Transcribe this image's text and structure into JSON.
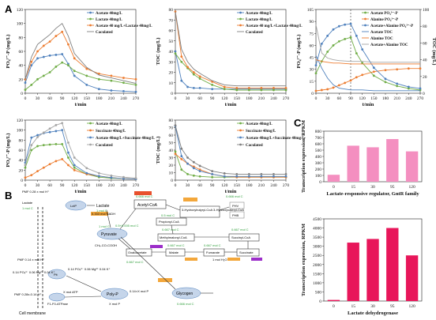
{
  "panels": {
    "a": "A",
    "b": "B",
    "c": "C"
  },
  "chart_data": [
    {
      "type": "line",
      "id": "a1",
      "xlabel": "t/min",
      "ylabel": "PO₄³⁻-P (mg/L)",
      "xticks": [
        0,
        30,
        60,
        90,
        120,
        150,
        180,
        210,
        240,
        270
      ],
      "yticks": [
        0,
        20,
        40,
        60,
        80,
        100,
        120
      ],
      "xlim": [
        0,
        270
      ],
      "ylim": [
        0,
        120
      ],
      "legend": "top-right",
      "series": [
        {
          "name": "Acetate 40mg/L",
          "color": "#4f81bd",
          "marker": "circle",
          "x": [
            0,
            15,
            30,
            45,
            60,
            75,
            90,
            105,
            120,
            150,
            180,
            210,
            240,
            270
          ],
          "y": [
            15,
            40,
            50,
            52,
            54,
            55,
            56,
            42,
            25,
            12,
            6,
            4,
            3,
            2
          ]
        },
        {
          "name": "Lactate 40mg/L",
          "color": "#70ad47",
          "marker": "circle",
          "x": [
            0,
            15,
            30,
            45,
            60,
            75,
            90,
            105,
            120,
            150,
            180,
            210,
            240,
            270
          ],
          "y": [
            5,
            12,
            20,
            25,
            30,
            38,
            44,
            40,
            32,
            25,
            20,
            18,
            15,
            12
          ]
        },
        {
          "name": "Acetate 40 mg/L+Lactate 40mg/L",
          "color": "#ed7d31",
          "marker": "circle",
          "x": [
            0,
            15,
            30,
            45,
            60,
            75,
            90,
            105,
            120,
            150,
            180,
            210,
            240,
            270
          ],
          "y": [
            20,
            45,
            60,
            68,
            74,
            82,
            88,
            70,
            50,
            35,
            28,
            25,
            22,
            20
          ]
        },
        {
          "name": "Caculated",
          "color": "#7f7f7f",
          "marker": "none",
          "x": [
            0,
            15,
            30,
            45,
            60,
            75,
            90,
            105,
            120,
            150,
            180,
            210,
            240,
            270
          ],
          "y": [
            20,
            52,
            70,
            77,
            84,
            93,
            100,
            82,
            57,
            37,
            26,
            22,
            18,
            14
          ]
        }
      ]
    },
    {
      "type": "line",
      "id": "a2",
      "xlabel": "t/min",
      "ylabel": "TOC (mg/L)",
      "xticks": [
        0,
        30,
        60,
        90,
        120,
        150,
        180,
        210,
        240,
        270
      ],
      "yticks": [
        0,
        10,
        20,
        30,
        40,
        50,
        60,
        70,
        80
      ],
      "xlim": [
        0,
        270
      ],
      "ylim": [
        0,
        80
      ],
      "legend": "top-right",
      "series": [
        {
          "name": "Acetate 40mg/L",
          "color": "#4f81bd",
          "marker": "circle",
          "x": [
            0,
            15,
            30,
            45,
            60,
            90,
            120,
            150,
            180,
            210,
            240,
            270
          ],
          "y": [
            40,
            12,
            6,
            5,
            5,
            4,
            4,
            4,
            4,
            4,
            4,
            4
          ]
        },
        {
          "name": "Lactate 40mg/L",
          "color": "#70ad47",
          "marker": "circle",
          "x": [
            0,
            15,
            30,
            45,
            60,
            90,
            120,
            150,
            180,
            210,
            240,
            270
          ],
          "y": [
            38,
            30,
            24,
            18,
            14,
            8,
            4,
            3,
            3,
            3,
            3,
            3
          ]
        },
        {
          "name": "Acetate 40 mg/L+Lactate 40mg/L",
          "color": "#ed7d31",
          "marker": "circle",
          "x": [
            0,
            15,
            30,
            45,
            60,
            90,
            120,
            150,
            180,
            210,
            240,
            270
          ],
          "y": [
            78,
            35,
            25,
            20,
            16,
            11,
            6,
            5,
            5,
            5,
            5,
            5
          ]
        },
        {
          "name": "Caculated",
          "color": "#7f7f7f",
          "marker": "none",
          "x": [
            0,
            15,
            30,
            45,
            60,
            90,
            120,
            150,
            180,
            210,
            240,
            270
          ],
          "y": [
            78,
            42,
            30,
            23,
            19,
            12,
            8,
            7,
            7,
            7,
            7,
            7
          ]
        }
      ]
    },
    {
      "type": "line",
      "id": "a3",
      "xlabel": "t/min",
      "ylabel": "PO₄³⁻-P (mg/L)",
      "ylabel2": "TOC (mg/L)",
      "xticks": [
        0,
        30,
        60,
        90,
        120,
        150,
        180,
        210,
        240,
        270
      ],
      "yticks": [
        0,
        15,
        30,
        45,
        60,
        75,
        90,
        105
      ],
      "yticks2": [
        0,
        20,
        40,
        60,
        80,
        100
      ],
      "xlim": [
        0,
        270
      ],
      "ylim": [
        0,
        105
      ],
      "ylim2": [
        0,
        100
      ],
      "vline_x": 90,
      "legend": "top-right",
      "series": [
        {
          "name": "Acetate PO₄³⁻-P",
          "color": "#70ad47",
          "marker": "circle",
          "axis": "left",
          "x": [
            0,
            15,
            30,
            45,
            60,
            75,
            90,
            105,
            120,
            150,
            180,
            210,
            240,
            270
          ],
          "y": [
            25,
            40,
            52,
            60,
            65,
            68,
            70,
            50,
            38,
            22,
            14,
            9,
            6,
            4
          ]
        },
        {
          "name": "Alanine PO₄³⁻-P",
          "color": "#ed7d31",
          "marker": "circle",
          "axis": "left",
          "x": [
            0,
            15,
            30,
            45,
            60,
            75,
            90,
            105,
            120,
            150,
            180,
            210,
            240,
            270
          ],
          "y": [
            3,
            4,
            5,
            7,
            10,
            13,
            16,
            20,
            23,
            27,
            29,
            30,
            31,
            31
          ]
        },
        {
          "name": "Acetate+Alanine PO₄³⁻-P",
          "color": "#4f81bd",
          "marker": "circle",
          "axis": "left",
          "x": [
            0,
            15,
            30,
            45,
            60,
            75,
            90,
            105,
            120,
            150,
            180,
            210,
            240,
            270
          ],
          "y": [
            35,
            62,
            72,
            80,
            84,
            86,
            87,
            72,
            55,
            32,
            18,
            12,
            8,
            6
          ]
        },
        {
          "name": "Acetate TOC",
          "color": "#4f81bd",
          "marker": "none",
          "axis": "right",
          "x": [
            0,
            15,
            30,
            45,
            60,
            90,
            120,
            150,
            180,
            210,
            240,
            270
          ],
          "y": [
            45,
            30,
            18,
            10,
            6,
            4,
            4,
            3,
            3,
            3,
            3,
            3
          ]
        },
        {
          "name": "Alanine TOC",
          "color": "#ed7d31",
          "marker": "none",
          "axis": "right",
          "x": [
            0,
            15,
            30,
            45,
            60,
            90,
            120,
            150,
            180,
            210,
            240,
            270
          ],
          "y": [
            40,
            38,
            37,
            36,
            36,
            35,
            35,
            35,
            35,
            35,
            35,
            35
          ]
        },
        {
          "name": "Acetate+Alanine TOC",
          "color": "#a5a5a5",
          "marker": "none",
          "axis": "right",
          "x": [
            0,
            15,
            30,
            45,
            60,
            90,
            120,
            150,
            180,
            210,
            240,
            270
          ],
          "y": [
            82,
            48,
            42,
            40,
            39,
            38,
            38,
            37,
            37,
            37,
            37,
            37
          ]
        }
      ]
    },
    {
      "type": "line",
      "id": "a4",
      "xlabel": "t/min",
      "ylabel": "PO₄³⁻-P (mg/L)",
      "xticks": [
        0,
        30,
        60,
        90,
        120,
        150,
        180,
        210,
        240,
        270
      ],
      "yticks": [
        0,
        20,
        40,
        60,
        80,
        100,
        120
      ],
      "xlim": [
        0,
        270
      ],
      "ylim": [
        0,
        120
      ],
      "legend": "top-right",
      "series": [
        {
          "name": "Acetate 40mg/L",
          "color": "#70ad47",
          "marker": "circle",
          "x": [
            0,
            15,
            30,
            45,
            60,
            75,
            90,
            105,
            120,
            150,
            180,
            210,
            240,
            270
          ],
          "y": [
            25,
            60,
            68,
            70,
            71,
            72,
            72,
            45,
            25,
            12,
            6,
            4,
            3,
            2
          ]
        },
        {
          "name": "Succinate 40mg/L",
          "color": "#ed7d31",
          "marker": "circle",
          "x": [
            0,
            15,
            30,
            45,
            60,
            75,
            90,
            105,
            120,
            150,
            180,
            210,
            240,
            270
          ],
          "y": [
            5,
            10,
            18,
            25,
            32,
            38,
            42,
            30,
            20,
            12,
            8,
            5,
            3,
            2
          ]
        },
        {
          "name": "Acetate 40mg/L+Succinate 40mg/L",
          "color": "#4f81bd",
          "marker": "circle",
          "x": [
            0,
            15,
            30,
            45,
            60,
            75,
            90,
            105,
            120,
            150,
            180,
            210,
            240,
            270
          ],
          "y": [
            35,
            85,
            90,
            94,
            96,
            98,
            100,
            55,
            30,
            14,
            8,
            5,
            3,
            2
          ]
        },
        {
          "name": "Caculated",
          "color": "#a5a5a5",
          "marker": "circle",
          "x": [
            0,
            15,
            30,
            45,
            60,
            75,
            90,
            105,
            120,
            150,
            180,
            210,
            240,
            270
          ],
          "y": [
            30,
            70,
            86,
            95,
            103,
            110,
            114,
            75,
            45,
            24,
            14,
            9,
            6,
            4
          ]
        }
      ]
    },
    {
      "type": "line",
      "id": "a5",
      "xlabel": "t/min",
      "ylabel": "TOC (mg/L)",
      "xticks": [
        0,
        30,
        60,
        90,
        120,
        150,
        180,
        210,
        240,
        270
      ],
      "yticks": [
        0,
        10,
        20,
        30,
        40,
        50,
        60,
        70,
        80
      ],
      "xlim": [
        0,
        270
      ],
      "ylim": [
        0,
        80
      ],
      "legend": "top-right",
      "series": [
        {
          "name": "Acetate 40mg/L",
          "color": "#70ad47",
          "marker": "circle",
          "x": [
            0,
            15,
            30,
            45,
            60,
            90,
            120,
            150,
            180,
            210,
            240,
            270
          ],
          "y": [
            38,
            14,
            8,
            6,
            5,
            4,
            4,
            4,
            4,
            4,
            4,
            4
          ]
        },
        {
          "name": "Succinate 40mg/L",
          "color": "#ed7d31",
          "marker": "circle",
          "x": [
            0,
            15,
            30,
            45,
            60,
            90,
            120,
            150,
            180,
            210,
            240,
            270
          ],
          "y": [
            35,
            28,
            22,
            18,
            14,
            8,
            5,
            4,
            4,
            4,
            4,
            4
          ]
        },
        {
          "name": "Acetate 40mg/L+Succinate 40mg/L",
          "color": "#4f81bd",
          "marker": "circle",
          "x": [
            0,
            15,
            30,
            45,
            60,
            90,
            120,
            150,
            180,
            210,
            240,
            270
          ],
          "y": [
            72,
            32,
            22,
            16,
            12,
            8,
            5,
            5,
            5,
            5,
            5,
            5
          ]
        },
        {
          "name": "Caculated",
          "color": "#7f7f7f",
          "marker": "circle",
          "x": [
            0,
            15,
            30,
            45,
            60,
            90,
            120,
            150,
            180,
            210,
            240,
            270
          ],
          "y": [
            73,
            42,
            30,
            24,
            19,
            12,
            9,
            8,
            8,
            8,
            8,
            8
          ]
        }
      ]
    },
    {
      "type": "bar",
      "id": "c1",
      "xlabel": "Lactate-responsive regulator, GntR family",
      "ylabel": "Transcription expression, RPKM",
      "categories": [
        "0",
        "15",
        "30",
        "95",
        "120"
      ],
      "values": [
        110,
        570,
        545,
        675,
        480
      ],
      "yticks": [
        0,
        100,
        200,
        300,
        400,
        500,
        600,
        700,
        800
      ],
      "ylim": [
        0,
        800
      ],
      "color": "#f48fc0"
    },
    {
      "type": "bar",
      "id": "c2",
      "xlabel": "Lactate dehydrogenase",
      "ylabel": "Transcription expression, RPKM",
      "categories": [
        "0",
        "15",
        "30",
        "95",
        "120"
      ],
      "values": [
        60,
        3200,
        3400,
        4000,
        2500
      ],
      "yticks": [
        0,
        500,
        1000,
        1500,
        2000,
        2500,
        3000,
        3500,
        4000,
        4500
      ],
      "ylim": [
        0,
        4500
      ],
      "color": "#e8165a"
    }
  ],
  "diagram_b": {
    "nodes": {
      "lactate_ext": "Lactate",
      "lctp": "LctP",
      "lactate_in": "Lactate",
      "pyruvate": "Pyruvate",
      "acetyl_coa": "Acetyl-CoA",
      "phv": "PHV",
      "phb": "PHB",
      "hydroxy": "3-Hydroxybutyryl-CoA\n3-Hydroxyvaleryl-CoA",
      "propionyl": "Propionyl-CoA",
      "methylmalonyl": "Methylmalonyl-CoA",
      "succinyl": "Succinyl-CoA",
      "oxaloacetate": "Oxaloacetate",
      "malate": "Malate",
      "fumarate": "Fumarate",
      "succinate": "Succinate",
      "glycogen": "Glycogen",
      "polyp": "Poly-P",
      "pit": "Pit",
      "cell_membrane": "Cell membrane"
    },
    "labels": {
      "pmf_top": "PMF\n0.28 x mol H⁺",
      "pmf_mid": "PMF\n0.14 x mol H⁺",
      "pmf_bot": "PMF\n0.28x-0.14 H⁺",
      "pit_left": "0.14 PO₄³⁻\n0.06 Mg²⁺\n0.04 K⁺",
      "pit_right": "0.14 PO₄³⁻\n0.06 Mg²⁺\n0.04 K⁺",
      "x_atp": "X mol ATP",
      "f1fo": "F1-F0-ATPase",
      "polyp_in": "0.14×X mol P",
      "polyp_out": "X mol P",
      "c_lact_out": "1 mol C",
      "c_lact_in": "1 mol C",
      "c_pyr": "1 mol C",
      "c_acoa": "0.666 mol C",
      "c_phv": "0.666 mol C",
      "c_prop": "0.5 mol C",
      "c_glyc": "0.666 mol C",
      "c_mm": "0.667 mol C",
      "c_succ": "0.667 mol C",
      "c_fum": "0.667 mol C",
      "c_mal": "0.667 mol C",
      "c_oxa": "0.667 mol C",
      "c_pyr_oxa": "0.5+0.005 mol C",
      "c_pyr_mal": "0.333 mol C",
      "nadh_1": "0.333 mol NADH",
      "nadh_2": "0.5 mol NADH",
      "co2": "CH₄-CO-COOH",
      "tca": "1 mol H₂O",
      "gly_c": "0.333 mol C",
      "gly_tag": "0.333 mol\nNADH",
      "fum_tag": "0.167 mol\nNADH",
      "mal_tag": "0.167 mol\nNADH",
      "oxa_tag": "0.167 mol ATP",
      "succ_tag": "0.167 mol\nATP",
      "acoa_tag": "0.33 mol\nNADH",
      "phv_tag": "0.33 mol\nNADPH"
    }
  }
}
